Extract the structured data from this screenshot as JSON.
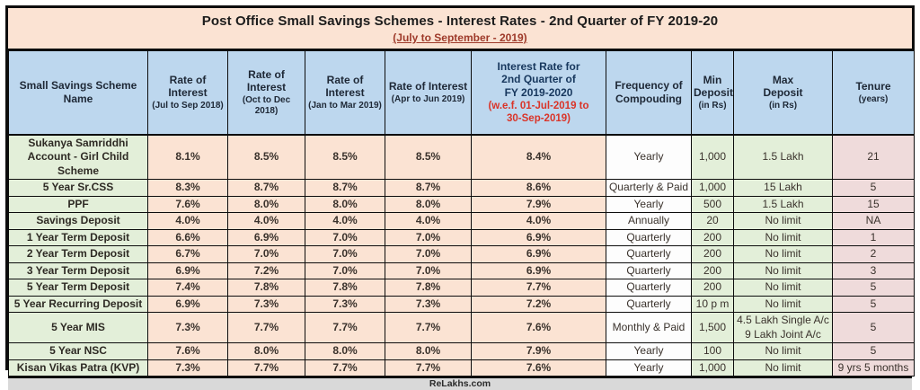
{
  "title": "Post Office Small Savings Schemes - Interest Rates - 2nd Quarter of FY 2019-20",
  "subtitle": "(July to September - 2019)",
  "watermark": "ReLakhs.com",
  "colors": {
    "title_band_bg": "#fbe3d3",
    "header_bg": "#bdd7ee",
    "rate_cell_bg": "#fbe3d3",
    "scheme_cell_bg": "#e3efd9",
    "tenure_cell_bg": "#efdbdb",
    "footer_bg": "#d9d9d9",
    "subtitle_red": "#9e3a2a",
    "note_red": "#da3428",
    "header_navy": "#17375d"
  },
  "table": {
    "headers": [
      {
        "main": "Small Savings Scheme Name",
        "sub": "",
        "note": ""
      },
      {
        "main": "Rate of Interest",
        "sub": "(Jul to Sep 2018)",
        "note": ""
      },
      {
        "main": "Rate of Interest",
        "sub": "(Oct to Dec 2018)",
        "note": ""
      },
      {
        "main": "Rate of Interest",
        "sub": "(Jan to Mar 2019)",
        "note": ""
      },
      {
        "main": "Rate of Interest",
        "sub": "(Apr to Jun 2019)",
        "note": ""
      },
      {
        "main": "Interest Rate for\n2nd Quarter of\nFY 2019-2020",
        "sub": "",
        "note": "(w.e.f. 01-Jul-2019 to\n30-Sep-2019)"
      },
      {
        "main": "Frequency of\nCompouding",
        "sub": "",
        "note": ""
      },
      {
        "main": "Min\nDeposit",
        "sub": "(in Rs)",
        "note": ""
      },
      {
        "main": "Max\nDeposit",
        "sub": "(in Rs)",
        "note": ""
      },
      {
        "main": "Tenure",
        "sub": "(years)",
        "note": ""
      }
    ],
    "rows": [
      [
        "Sukanya Samriddhi Account - Girl Child Scheme",
        "8.1%",
        "8.5%",
        "8.5%",
        "8.5%",
        "8.4%",
        "Yearly",
        "1,000",
        "1.5 Lakh",
        "21"
      ],
      [
        "5 Year Sr.CSS",
        "8.3%",
        "8.7%",
        "8.7%",
        "8.7%",
        "8.6%",
        "Quarterly & Paid",
        "1,000",
        "15 Lakh",
        "5"
      ],
      [
        "PPF",
        "7.6%",
        "8.0%",
        "8.0%",
        "8.0%",
        "7.9%",
        "Yearly",
        "500",
        "1.5 Lakh",
        "15"
      ],
      [
        "Savings Deposit",
        "4.0%",
        "4.0%",
        "4.0%",
        "4.0%",
        "4.0%",
        "Annually",
        "20",
        "No limit",
        "NA"
      ],
      [
        "1 Year Term Deposit",
        "6.6%",
        "6.9%",
        "7.0%",
        "7.0%",
        "6.9%",
        "Quarterly",
        "200",
        "No limit",
        "1"
      ],
      [
        "2 Year Term Deposit",
        "6.7%",
        "7.0%",
        "7.0%",
        "7.0%",
        "6.9%",
        "Quarterly",
        "200",
        "No limit",
        "2"
      ],
      [
        "3 Year Term Deposit",
        "6.9%",
        "7.2%",
        "7.0%",
        "7.0%",
        "6.9%",
        "Quarterly",
        "200",
        "No limit",
        "3"
      ],
      [
        "5 Year Term Deposit",
        "7.4%",
        "7.8%",
        "7.8%",
        "7.8%",
        "7.7%",
        "Quarterly",
        "200",
        "No limit",
        "5"
      ],
      [
        "5 Year Recurring Deposit",
        "6.9%",
        "7.3%",
        "7.3%",
        "7.3%",
        "7.2%",
        "Quarterly",
        "10 p m",
        "No limit",
        "5"
      ],
      [
        "5 Year MIS",
        "7.3%",
        "7.7%",
        "7.7%",
        "7.7%",
        "7.6%",
        "Monthly & Paid",
        "1,500",
        "4.5 Lakh Single A/c\n9 Lakh Joint A/c",
        "5"
      ],
      [
        "5 Year NSC",
        "7.6%",
        "8.0%",
        "8.0%",
        "8.0%",
        "7.9%",
        "Yearly",
        "100",
        "No limit",
        "5"
      ],
      [
        "Kisan Vikas Patra (KVP)",
        "7.3%",
        "7.7%",
        "7.7%",
        "7.7%",
        "7.6%",
        "Yearly",
        "1,000",
        "No limit",
        "9 yrs 5 months"
      ]
    ]
  }
}
